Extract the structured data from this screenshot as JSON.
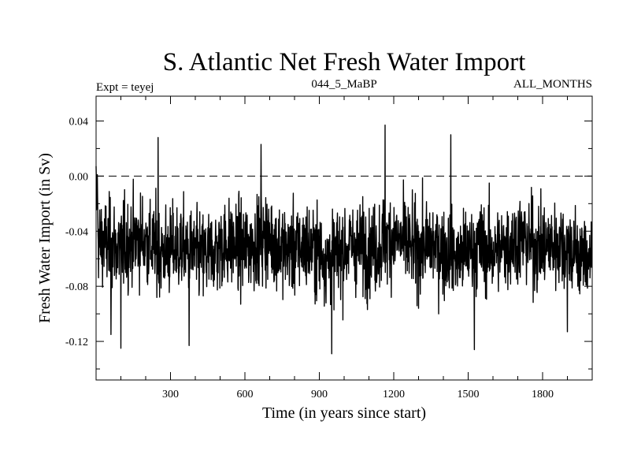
{
  "chart_data": {
    "type": "line",
    "title": "S. Atlantic Net Fresh Water Import",
    "subtitle_left": "Expt = teyej",
    "subtitle_center": "044_5_MaBP",
    "subtitle_right": "ALL_MONTHS",
    "xlabel": "Time (in years since start)",
    "ylabel": "Fresh Water Import (in Sv)",
    "xlim": [
      0,
      2000
    ],
    "ylim": [
      -0.148,
      0.058
    ],
    "x_ticks": [
      300,
      600,
      900,
      1200,
      1500,
      1800
    ],
    "x_minor_step": 100,
    "y_ticks": [
      -0.12,
      -0.08,
      -0.04,
      0.0,
      0.04
    ],
    "y_tick_labels": [
      "-0.12",
      "-0.08",
      "-0.04",
      "0.00",
      "0.04"
    ],
    "y_minor_step": 0.02,
    "reference_line": {
      "y": 0.0,
      "style": "dashed"
    },
    "series": [
      {
        "name": "S. Atlantic Net Fresh Water Import",
        "n_points": 2000,
        "baseline_mean": -0.052,
        "noise_sd": 0.016,
        "envelope_min": -0.13,
        "envelope_max": 0.038,
        "notable_points": [
          {
            "x": 5,
            "y": 0.001
          },
          {
            "x": 60,
            "y": -0.115
          },
          {
            "x": 100,
            "y": -0.125
          },
          {
            "x": 250,
            "y": 0.028
          },
          {
            "x": 375,
            "y": -0.123
          },
          {
            "x": 665,
            "y": 0.023
          },
          {
            "x": 950,
            "y": -0.129
          },
          {
            "x": 1165,
            "y": 0.037
          },
          {
            "x": 1430,
            "y": 0.03
          },
          {
            "x": 1525,
            "y": -0.126
          },
          {
            "x": 1900,
            "y": -0.113
          }
        ]
      }
    ]
  }
}
